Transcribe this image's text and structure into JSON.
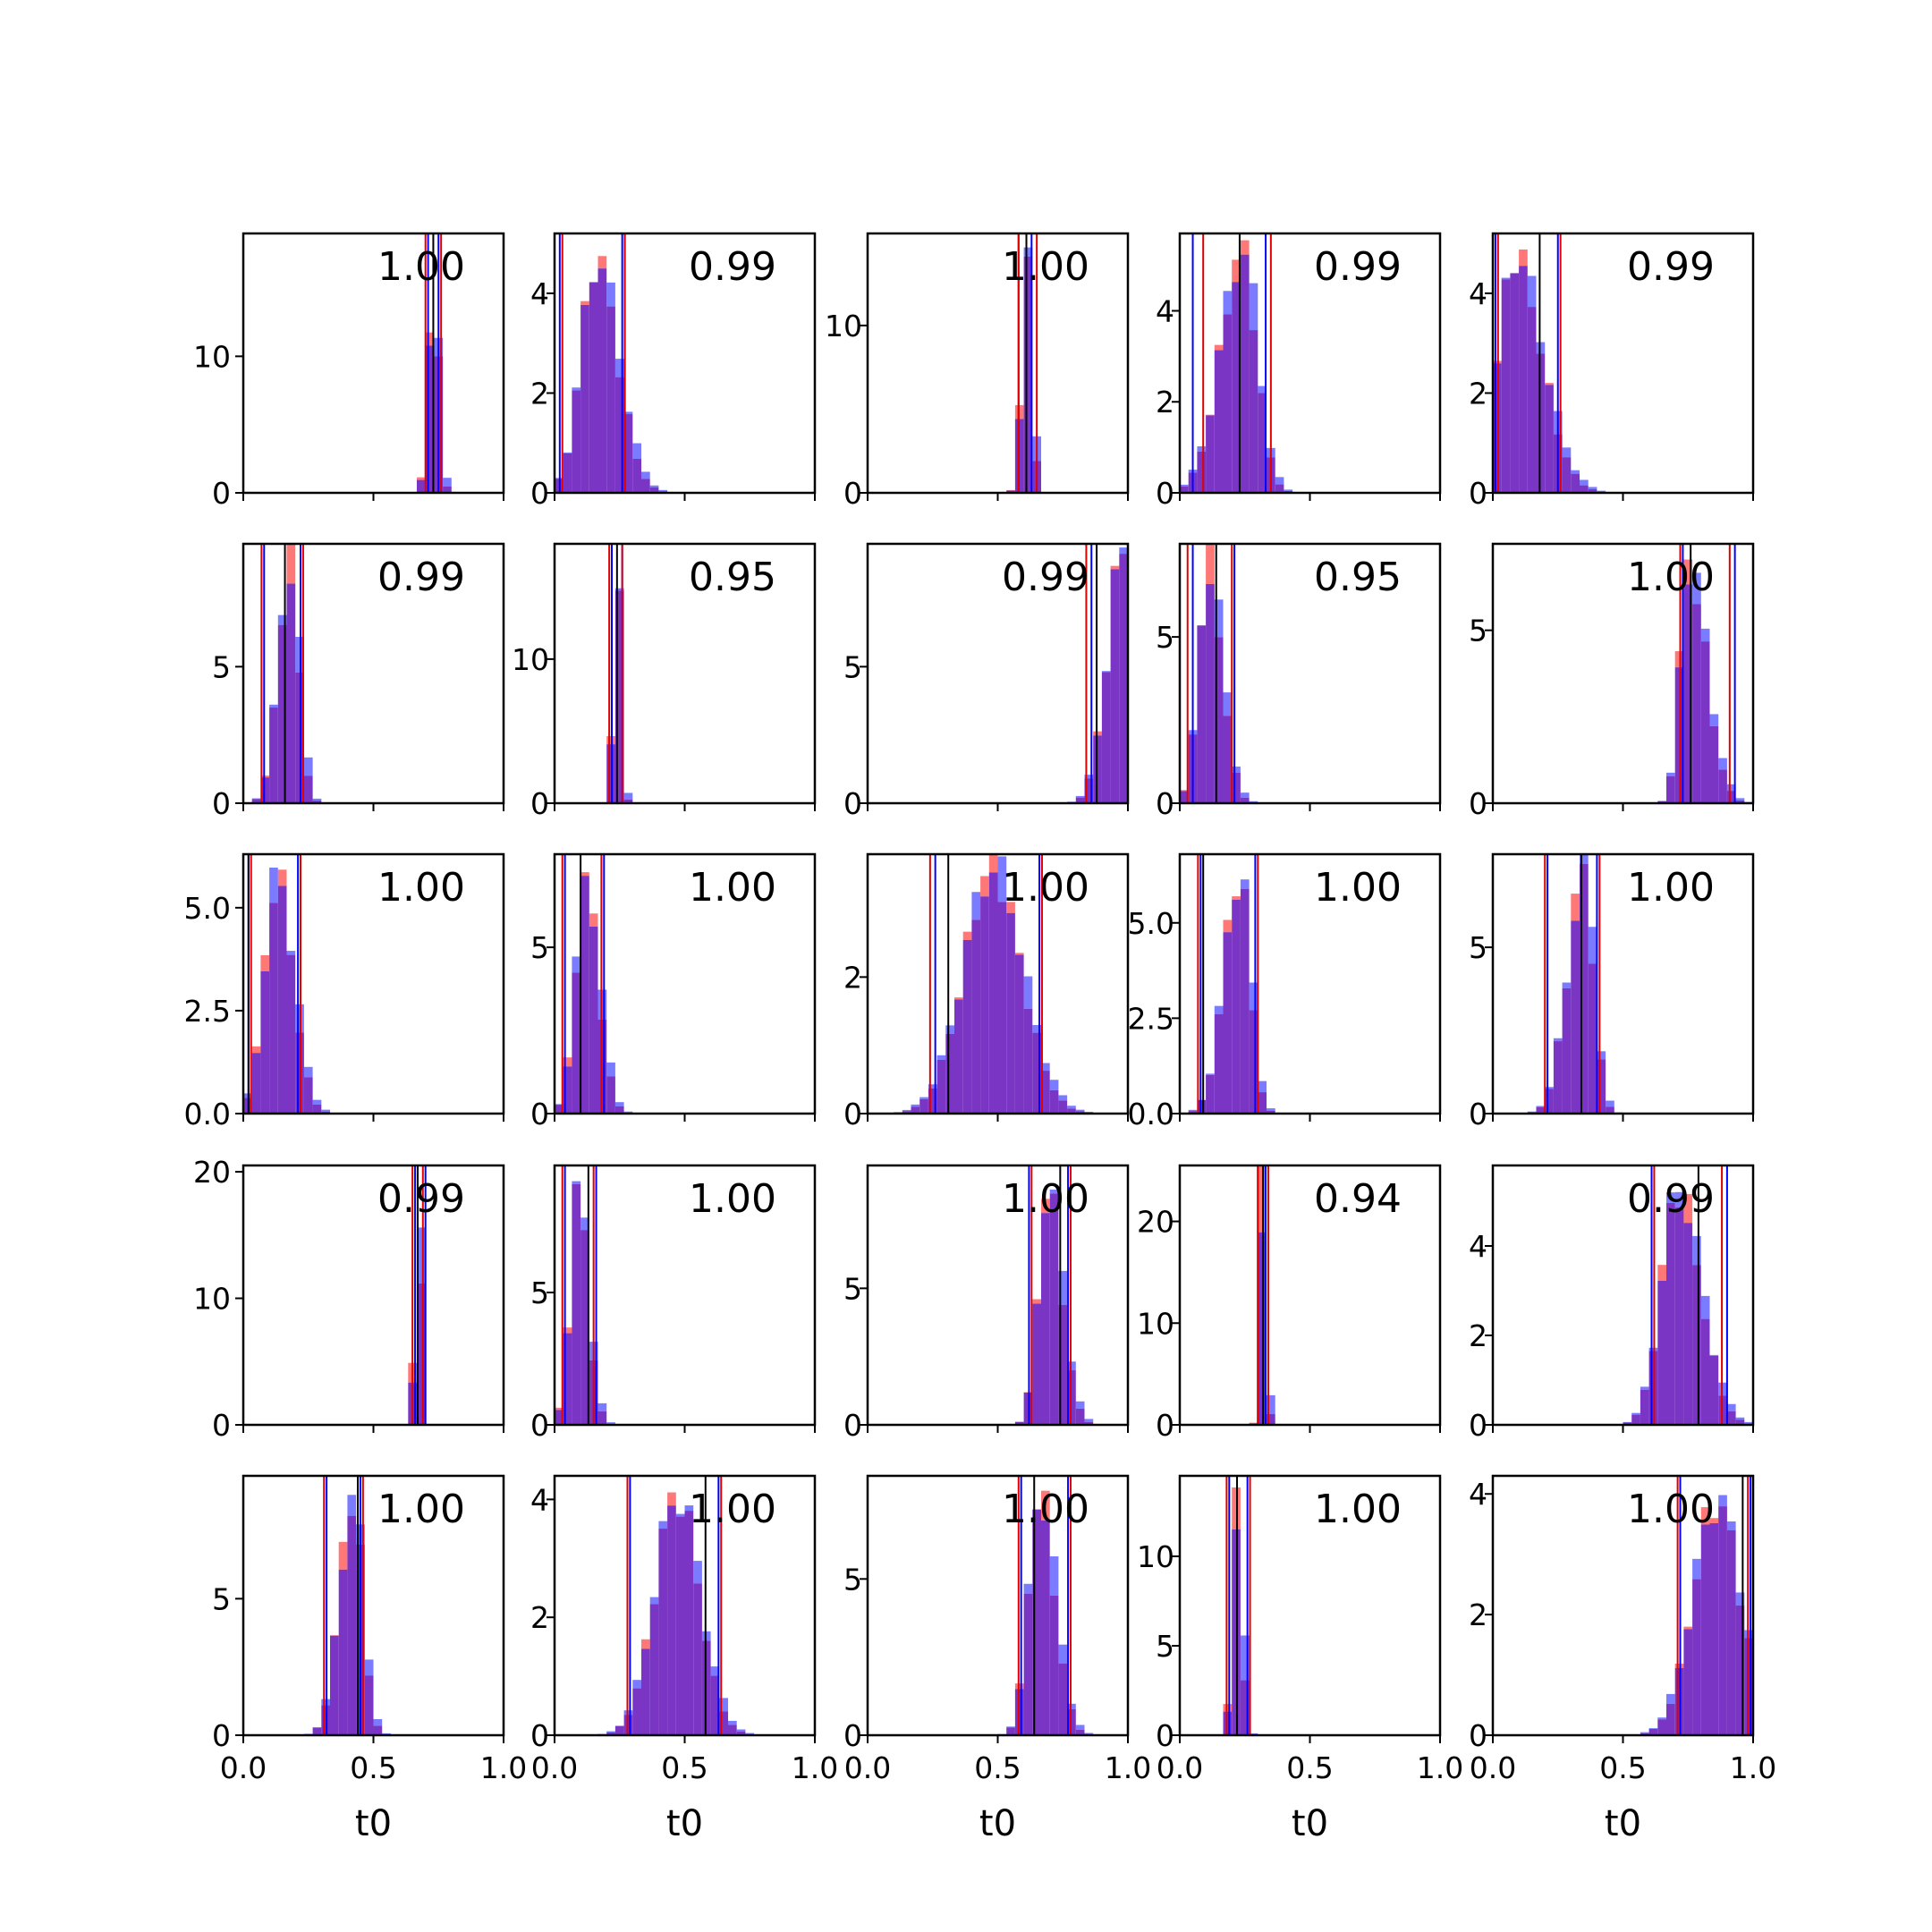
{
  "chart_data": {
    "type": "bar",
    "layout": "5x5 grid of histogram panels",
    "xlabel": "t0",
    "xlim": [
      0,
      1
    ],
    "xticks": [
      "0.0",
      "0.5",
      "1.0"
    ],
    "series_colors": {
      "red": "#ff3030",
      "blue": "#3434ff"
    },
    "overlap_color": "#7b35c4",
    "panels": [
      {
        "corr": "1.00",
        "ymax": 19,
        "yticks": [
          {
            "v": 0,
            "t": "0"
          },
          {
            "v": 10,
            "t": "10"
          }
        ],
        "ylabel_clip": 0,
        "center": 0.73,
        "width": 0.02,
        "peak": 16,
        "skew": 0,
        "red_lines": [
          0.7,
          0.76
        ],
        "blue_lines": [
          0.71,
          0.75
        ],
        "black_lines": [
          0.73
        ]
      },
      {
        "corr": "0.99",
        "ymax": 5.2,
        "yticks": [
          {
            "v": 0,
            "t": "0"
          },
          {
            "v": 2,
            "t": "2"
          },
          {
            "v": 4,
            "t": "4"
          }
        ],
        "ylabel_clip": 1,
        "center": 0.16,
        "width": 0.07,
        "peak": 4.7,
        "skew": 0.3,
        "red_lines": [
          0.03,
          0.27
        ],
        "blue_lines": [
          0.02,
          0.26
        ],
        "black_lines": [
          0.27
        ]
      },
      {
        "corr": "1.00",
        "ymax": 15.5,
        "yticks": [
          {
            "v": 0,
            "t": "0"
          },
          {
            "v": 10,
            "t": "10"
          }
        ],
        "ylabel_clip": 1,
        "center": 0.61,
        "width": 0.02,
        "peak": 14,
        "skew": 0,
        "red_lines": [
          0.58,
          0.65
        ],
        "blue_lines": [
          0.58,
          0.63
        ],
        "black_lines": [
          0.61
        ]
      },
      {
        "corr": "0.99",
        "ymax": 5.7,
        "yticks": [
          {
            "v": 0,
            "t": "0"
          },
          {
            "v": 2,
            "t": "2"
          },
          {
            "v": 4,
            "t": "4"
          }
        ],
        "ylabel_clip": 1,
        "center": 0.24,
        "width": 0.07,
        "peak": 5.3,
        "skew": -0.4,
        "red_lines": [
          0.09,
          0.35
        ],
        "blue_lines": [
          0.05,
          0.33
        ],
        "black_lines": [
          0.23
        ]
      },
      {
        "corr": "0.99",
        "ymax": 5.2,
        "yticks": [
          {
            "v": 0,
            "t": "0"
          },
          {
            "v": 2,
            "t": "2"
          },
          {
            "v": 4,
            "t": "4"
          }
        ],
        "ylabel_clip": 1,
        "center": 0.08,
        "width": 0.08,
        "peak": 4.8,
        "skew": 0.6,
        "red_lines": [
          0.02,
          0.26
        ],
        "blue_lines": [
          0.01,
          0.25
        ],
        "black_lines": [
          0.18
        ]
      },
      {
        "corr": "0.99",
        "ymax": 9.5,
        "yticks": [
          {
            "v": 0,
            "t": "0"
          },
          {
            "v": 5,
            "t": "5"
          }
        ],
        "ylabel_clip": 0,
        "center": 0.18,
        "width": 0.04,
        "peak": 8.8,
        "skew": -0.3,
        "red_lines": [
          0.07,
          0.23
        ],
        "blue_lines": [
          0.08,
          0.22
        ],
        "black_lines": [
          0.16
        ]
      },
      {
        "corr": "0.95",
        "ymax": 18,
        "yticks": [
          {
            "v": 0,
            "t": "0"
          },
          {
            "v": 10,
            "t": "10"
          }
        ],
        "ylabel_clip": 1,
        "center": 0.24,
        "width": 0.015,
        "peak": 17,
        "skew": 0,
        "red_lines": [
          0.21,
          0.26
        ],
        "blue_lines": [
          0.22,
          0.26
        ],
        "black_lines": [
          0.24
        ]
      },
      {
        "corr": "0.99",
        "ymax": 9.5,
        "yticks": [
          {
            "v": 0,
            "t": "0"
          },
          {
            "v": 5,
            "t": "5"
          }
        ],
        "ylabel_clip": 1,
        "center": 0.98,
        "width": 0.06,
        "peak": 9.2,
        "skew": 0,
        "red_lines": [
          0.84,
          1.0
        ],
        "blue_lines": [
          0.86,
          1.0
        ],
        "black_lines": [
          0.88
        ]
      },
      {
        "corr": "0.95",
        "ymax": 7.8,
        "yticks": [
          {
            "v": 0,
            "t": "0"
          },
          {
            "v": 5,
            "t": "5"
          }
        ],
        "ylabel_clip": 1,
        "center": 0.11,
        "width": 0.045,
        "peak": 7.2,
        "skew": 0.3,
        "red_lines": [
          0.03,
          0.2
        ],
        "blue_lines": [
          0.05,
          0.21
        ],
        "black_lines": [
          0.14
        ]
      },
      {
        "corr": "1.00",
        "ymax": 7.5,
        "yticks": [
          {
            "v": 0,
            "t": "0"
          },
          {
            "v": 5,
            "t": "5"
          }
        ],
        "ylabel_clip": 1,
        "center": 0.75,
        "width": 0.05,
        "peak": 7.0,
        "skew": 0.7,
        "red_lines": [
          0.72,
          0.91
        ],
        "blue_lines": [
          0.73,
          0.93
        ],
        "black_lines": [
          0.76
        ]
      },
      {
        "corr": "1.00",
        "ymax": 6.3,
        "yticks": [
          {
            "v": 0,
            "t": "0.0"
          },
          {
            "v": 2.5,
            "t": "2.5"
          },
          {
            "v": 5,
            "t": "5.0"
          }
        ],
        "ylabel_clip": 0,
        "center": 0.13,
        "width": 0.055,
        "peak": 5.8,
        "skew": 0.2,
        "red_lines": [
          0.03,
          0.22
        ],
        "blue_lines": [
          0.02,
          0.21
        ],
        "black_lines": [
          0.02
        ]
      },
      {
        "corr": "1.00",
        "ymax": 7.8,
        "yticks": [
          {
            "v": 0,
            "t": "0"
          },
          {
            "v": 5,
            "t": "5"
          }
        ],
        "ylabel_clip": 1,
        "center": 0.12,
        "width": 0.045,
        "peak": 7.0,
        "skew": 0.2,
        "red_lines": [
          0.03,
          0.18
        ],
        "blue_lines": [
          0.04,
          0.19
        ],
        "black_lines": [
          0.1
        ]
      },
      {
        "corr": "1.00",
        "ymax": 3.8,
        "yticks": [
          {
            "v": 0,
            "t": "0"
          },
          {
            "v": 2,
            "t": "2"
          }
        ],
        "ylabel_clip": 1,
        "center": 0.48,
        "width": 0.11,
        "peak": 3.6,
        "skew": 0,
        "red_lines": [
          0.24,
          0.67
        ],
        "blue_lines": [
          0.26,
          0.66
        ],
        "black_lines": [
          0.31
        ]
      },
      {
        "corr": "1.00",
        "ymax": 6.8,
        "yticks": [
          {
            "v": 0,
            "t": "0.0"
          },
          {
            "v": 2.5,
            "t": "2.5"
          },
          {
            "v": 5,
            "t": "5.0"
          }
        ],
        "ylabel_clip": 1,
        "center": 0.23,
        "width": 0.05,
        "peak": 6.4,
        "skew": -0.4,
        "red_lines": [
          0.07,
          0.3
        ],
        "blue_lines": [
          0.08,
          0.29
        ],
        "black_lines": [
          0.09
        ]
      },
      {
        "corr": "1.00",
        "ymax": 7.8,
        "yticks": [
          {
            "v": 0,
            "t": "0"
          },
          {
            "v": 5,
            "t": "5"
          }
        ],
        "ylabel_clip": 1,
        "center": 0.35,
        "width": 0.05,
        "peak": 7.3,
        "skew": -0.5,
        "red_lines": [
          0.2,
          0.41
        ],
        "blue_lines": [
          0.21,
          0.4
        ],
        "black_lines": [
          0.34
        ]
      },
      {
        "corr": "0.99",
        "ymax": 20.5,
        "yticks": [
          {
            "v": 0,
            "t": "0"
          },
          {
            "v": 10,
            "t": "10"
          },
          {
            "v": 20,
            "t": "20"
          }
        ],
        "ylabel_clip": 0,
        "center": 0.67,
        "width": 0.012,
        "peak": 19.5,
        "skew": 0,
        "red_lines": [
          0.65,
          0.69
        ],
        "blue_lines": [
          0.66,
          0.7
        ],
        "black_lines": [
          0.67
        ]
      },
      {
        "corr": "1.00",
        "ymax": 9.8,
        "yticks": [
          {
            "v": 0,
            "t": "0"
          },
          {
            "v": 5,
            "t": "5"
          }
        ],
        "ylabel_clip": 1,
        "center": 0.09,
        "width": 0.035,
        "peak": 9.0,
        "skew": 0.2,
        "red_lines": [
          0.03,
          0.15
        ],
        "blue_lines": [
          0.04,
          0.16
        ],
        "black_lines": [
          0.13
        ]
      },
      {
        "corr": "1.00",
        "ymax": 9.5,
        "yticks": [
          {
            "v": 0,
            "t": "0"
          },
          {
            "v": 5,
            "t": "5"
          }
        ],
        "ylabel_clip": 1,
        "center": 0.69,
        "width": 0.045,
        "peak": 8.8,
        "skew": 0.4,
        "red_lines": [
          0.63,
          0.78
        ],
        "blue_lines": [
          0.62,
          0.77
        ],
        "black_lines": [
          0.74
        ]
      },
      {
        "corr": "0.94",
        "ymax": 25.5,
        "yticks": [
          {
            "v": 0,
            "t": "0"
          },
          {
            "v": 10,
            "t": "10"
          },
          {
            "v": 20,
            "t": "20"
          }
        ],
        "ylabel_clip": 1,
        "center": 0.32,
        "width": 0.012,
        "peak": 24.5,
        "skew": 0,
        "red_lines": [
          0.3,
          0.34
        ],
        "blue_lines": [
          0.3,
          0.33
        ],
        "black_lines": [
          0.32
        ]
      },
      {
        "corr": "0.99",
        "ymax": 5.8,
        "yticks": [
          {
            "v": 0,
            "t": "0"
          },
          {
            "v": 2,
            "t": "2"
          },
          {
            "v": 4,
            "t": "4"
          }
        ],
        "ylabel_clip": 1,
        "center": 0.71,
        "width": 0.075,
        "peak": 5.3,
        "skew": 0.3,
        "red_lines": [
          0.62,
          0.88
        ],
        "blue_lines": [
          0.61,
          0.9
        ],
        "black_lines": [
          0.79
        ]
      },
      {
        "corr": "1.00",
        "ymax": 9.5,
        "yticks": [
          {
            "v": 0,
            "t": "0"
          },
          {
            "v": 5,
            "t": "5"
          }
        ],
        "ylabel_clip": 0,
        "center": 0.42,
        "width": 0.045,
        "peak": 8.8,
        "skew": -0.3,
        "red_lines": [
          0.31,
          0.46
        ],
        "blue_lines": [
          0.32,
          0.45
        ],
        "black_lines": [
          0.44
        ]
      },
      {
        "corr": "1.00",
        "ymax": 4.4,
        "yticks": [
          {
            "v": 0,
            "t": "0"
          },
          {
            "v": 2,
            "t": "2"
          },
          {
            "v": 4,
            "t": "4"
          }
        ],
        "ylabel_clip": 1,
        "center": 0.47,
        "width": 0.085,
        "peak": 4.1,
        "skew": 0,
        "red_lines": [
          0.28,
          0.64
        ],
        "blue_lines": [
          0.29,
          0.63
        ],
        "black_lines": [
          0.58
        ]
      },
      {
        "corr": "1.00",
        "ymax": 8.3,
        "yticks": [
          {
            "v": 0,
            "t": "0"
          },
          {
            "v": 5,
            "t": "5"
          }
        ],
        "ylabel_clip": 1,
        "center": 0.66,
        "width": 0.05,
        "peak": 7.8,
        "skew": 0.3,
        "red_lines": [
          0.58,
          0.78
        ],
        "blue_lines": [
          0.59,
          0.77
        ],
        "black_lines": [
          0.64
        ]
      },
      {
        "corr": "1.00",
        "ymax": 14.5,
        "yticks": [
          {
            "v": 0,
            "t": "0"
          },
          {
            "v": 5,
            "t": "5"
          },
          {
            "v": 10,
            "t": "10"
          }
        ],
        "ylabel_clip": 1,
        "center": 0.22,
        "width": 0.018,
        "peak": 13.5,
        "skew": 0,
        "red_lines": [
          0.18,
          0.27
        ],
        "blue_lines": [
          0.19,
          0.26
        ],
        "black_lines": [
          0.22
        ]
      },
      {
        "corr": "1.00",
        "ymax": 4.3,
        "yticks": [
          {
            "v": 0,
            "t": "0"
          },
          {
            "v": 2,
            "t": "2"
          },
          {
            "v": 4,
            "t": "4"
          }
        ],
        "ylabel_clip": 1,
        "center": 0.86,
        "width": 0.09,
        "peak": 3.9,
        "skew": 0,
        "red_lines": [
          0.71,
          0.98
        ],
        "blue_lines": [
          0.72,
          0.99
        ],
        "black_lines": [
          0.96
        ]
      }
    ]
  }
}
